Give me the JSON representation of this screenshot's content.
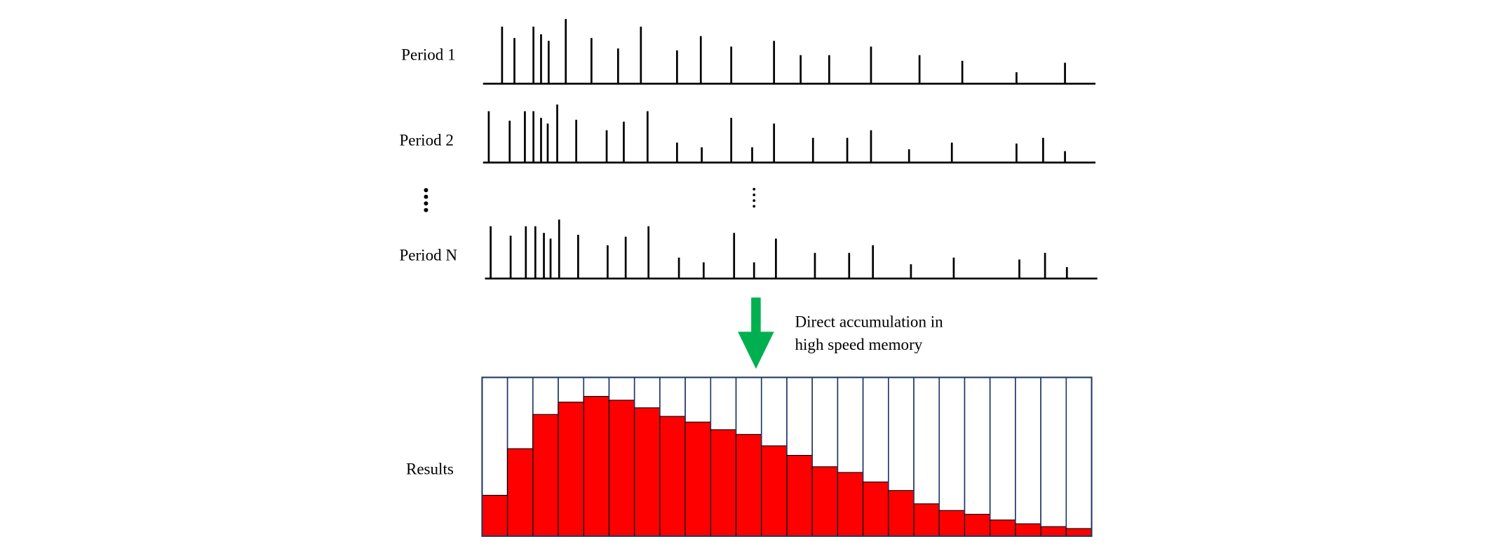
{
  "periods": [
    {
      "label": "Period 1"
    },
    {
      "label": "Period 2"
    },
    {
      "label": "Period N"
    }
  ],
  "arrow_note": [
    "Direct accumulation  in",
    "high  speed memory"
  ],
  "results": {
    "label": "Results"
  }
}
